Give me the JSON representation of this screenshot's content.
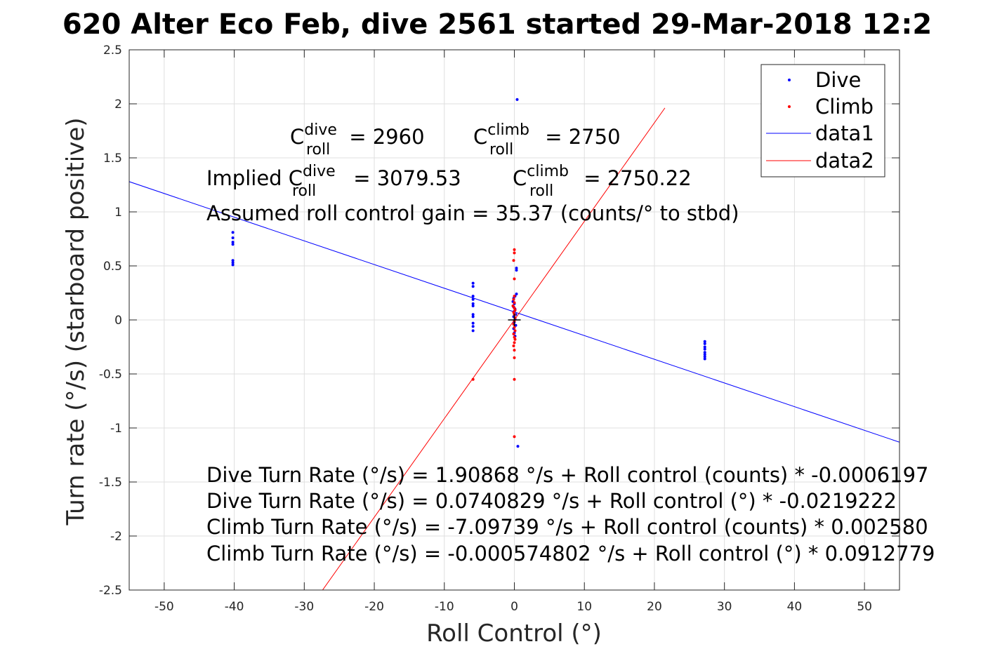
{
  "chart_data": {
    "type": "scatter",
    "title": "620 Alter Eco Feb, dive 2561 started 29-Mar-2018 12:2",
    "xlabel": "Roll Control (°)",
    "ylabel": "Turn rate (°/s) (starboard positive)",
    "xlim": [
      -55,
      55
    ],
    "ylim": [
      -2.5,
      2.5
    ],
    "xticks": [
      -50,
      -40,
      -30,
      -20,
      -10,
      0,
      10,
      20,
      30,
      40,
      50
    ],
    "yticks": [
      -2.5,
      -2,
      -1.5,
      -1,
      -0.5,
      0,
      0.5,
      1,
      1.5,
      2,
      2.5
    ],
    "xtick_labels": [
      "-50",
      "-40",
      "-30",
      "-20",
      "-10",
      "0",
      "10",
      "20",
      "30",
      "40",
      "50"
    ],
    "ytick_labels": [
      "-2.5",
      "-2",
      "-1.5",
      "-1",
      "-0.5",
      "0",
      "0.5",
      "1",
      "1.5",
      "2",
      "2.5"
    ],
    "grid": true,
    "legend_position": "top-right",
    "series": [
      {
        "name": "Dive",
        "kind": "points",
        "color": "#0000ff",
        "points": [
          [
            -40.2,
            0.81
          ],
          [
            -40.2,
            0.76
          ],
          [
            -40.2,
            0.72
          ],
          [
            -40.2,
            0.7
          ],
          [
            -40.2,
            0.55
          ],
          [
            -40.2,
            0.53
          ],
          [
            -40.2,
            0.51
          ],
          [
            -5.9,
            0.34
          ],
          [
            -5.9,
            0.31
          ],
          [
            -5.9,
            0.22
          ],
          [
            -5.9,
            0.19
          ],
          [
            -5.9,
            0.15
          ],
          [
            -5.9,
            0.13
          ],
          [
            -5.9,
            0.05
          ],
          [
            -5.9,
            0.03
          ],
          [
            -5.9,
            -0.03
          ],
          [
            -5.9,
            -0.06
          ],
          [
            -5.9,
            -0.1
          ],
          [
            0.4,
            2.04
          ],
          [
            0.3,
            0.48
          ],
          [
            0.3,
            0.46
          ],
          [
            0.3,
            0.24
          ],
          [
            0.1,
            0.22
          ],
          [
            -0.1,
            0.2
          ],
          [
            -0.2,
            0.17
          ],
          [
            0.0,
            0.15
          ],
          [
            -0.1,
            0.12
          ],
          [
            0.1,
            0.1
          ],
          [
            0.0,
            0.08
          ],
          [
            0.2,
            0.05
          ],
          [
            -0.1,
            0.03
          ],
          [
            0.1,
            0.01
          ],
          [
            0.0,
            -0.02
          ],
          [
            0.2,
            -0.05
          ],
          [
            -0.1,
            -0.08
          ],
          [
            0.0,
            -0.12
          ],
          [
            0.1,
            -0.15
          ],
          [
            0.5,
            -1.17
          ],
          [
            27.2,
            -0.2
          ],
          [
            27.2,
            -0.22
          ],
          [
            27.2,
            -0.25
          ],
          [
            27.2,
            -0.27
          ],
          [
            27.2,
            -0.3
          ],
          [
            27.2,
            -0.32
          ],
          [
            27.2,
            -0.34
          ],
          [
            27.2,
            -0.36
          ]
        ]
      },
      {
        "name": "Climb",
        "kind": "points",
        "color": "#ff0000",
        "points": [
          [
            -5.9,
            -0.55
          ],
          [
            0.0,
            0.65
          ],
          [
            0.0,
            0.62
          ],
          [
            -0.1,
            0.55
          ],
          [
            0.0,
            0.38
          ],
          [
            0.0,
            0.22
          ],
          [
            -0.1,
            0.19
          ],
          [
            0.0,
            0.16
          ],
          [
            -0.2,
            0.13
          ],
          [
            0.0,
            0.11
          ],
          [
            0.1,
            0.09
          ],
          [
            -0.1,
            0.07
          ],
          [
            0.0,
            0.05
          ],
          [
            0.1,
            0.02
          ],
          [
            0.0,
            -0.01
          ],
          [
            -0.1,
            -0.04
          ],
          [
            0.0,
            -0.07
          ],
          [
            0.1,
            -0.1
          ],
          [
            -0.1,
            -0.13
          ],
          [
            0.0,
            -0.16
          ],
          [
            0.1,
            -0.18
          ],
          [
            0.0,
            -0.21
          ],
          [
            -0.1,
            -0.24
          ],
          [
            0.0,
            -0.28
          ],
          [
            0.0,
            -0.35
          ],
          [
            0.0,
            -0.55
          ],
          [
            0.0,
            -1.08
          ]
        ]
      },
      {
        "name": "data1",
        "kind": "line",
        "color": "#0000ff",
        "x": [
          -55,
          55
        ],
        "y": [
          1.2798,
          -1.1316
        ]
      },
      {
        "name": "data2",
        "kind": "line",
        "color": "#ff0000",
        "x": [
          -33.5,
          21.5
        ],
        "y": [
          -3.058,
          1.962
        ]
      }
    ],
    "center_marker": {
      "x": 0,
      "y": 0,
      "color": "#000000"
    },
    "annotations": {
      "c_dive": {
        "base": "C",
        "sup": "dive",
        "sub": "roll",
        "rest": " = 2960"
      },
      "c_climb": {
        "base": "C",
        "sup": "climb",
        "sub": "roll",
        "rest": " = 2750"
      },
      "implied_dive": {
        "prefix": "Implied C",
        "sup": "dive",
        "sub": "roll",
        "rest": " = 3079.53"
      },
      "implied_climb": {
        "base": "C",
        "sup": "climb",
        "sub": "roll",
        "rest": " = 2750.22"
      },
      "gain": "Assumed roll control gain = 35.37 (counts/° to stbd)",
      "eq1": "Dive Turn Rate (°/s) = 1.90868 °/s + Roll control (counts) * -0.0006197",
      "eq2": "Dive Turn Rate (°/s) = 0.0740829 °/s + Roll control (°) * -0.0219222",
      "eq3": "Climb Turn Rate (°/s) = -7.09739 °/s + Roll control (counts) * 0.002580",
      "eq4": "Climb Turn Rate (°/s) = -0.000574802 °/s + Roll control (°) * 0.0912779"
    }
  }
}
